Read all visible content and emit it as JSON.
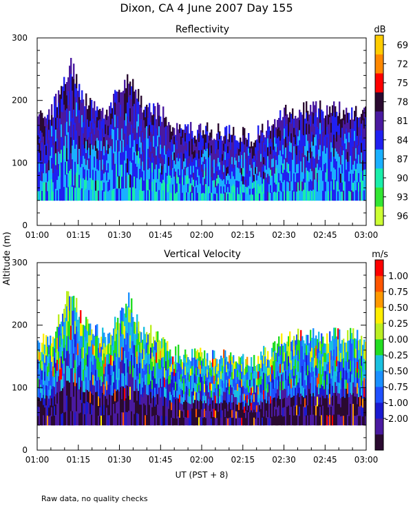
{
  "figure": {
    "title": "Dixon, CA   4 June 2007   Day 155",
    "ylabel": "Altitude (m)",
    "xlabel": "UT  (PST + 8)",
    "note": "Raw data, no quality checks"
  },
  "colors": {
    "reflectivity": [
      "#ccff33",
      "#33e633",
      "#1aeeaa",
      "#1ab0ff",
      "#2020f0",
      "#4a1aa0",
      "#2a0a30",
      "#ff0000",
      "#ff8800",
      "#ffcc00"
    ],
    "velocity": [
      "#2a0a30",
      "#4a1aa0",
      "#1a1ad0",
      "#2050ff",
      "#1a90ff",
      "#1ac0e0",
      "#22dd22",
      "#bbee22",
      "#ffee00",
      "#ff9900",
      "#ff5500",
      "#ff0000"
    ]
  },
  "chart_data": [
    {
      "type": "heatmap",
      "title": "Reflectivity",
      "xlabel": "UT  (PST + 8)",
      "ylabel": "Altitude (m)",
      "xlim": [
        "01:00",
        "03:00"
      ],
      "ylim": [
        0,
        300
      ],
      "x_ticks": [
        "01:00",
        "01:15",
        "01:30",
        "01:45",
        "02:00",
        "02:15",
        "02:30",
        "02:45",
        "03:00"
      ],
      "y_ticks": [
        0,
        100,
        200,
        300
      ],
      "colorbar": {
        "label": "dB",
        "range": [
          67.5,
          97.5
        ],
        "tick_labels": [
          "69",
          "72",
          "75",
          "78",
          "81",
          "84",
          "87",
          "90",
          "93",
          "96"
        ]
      },
      "observations": {
        "data_floor_m": 40,
        "echo_top_profile": [
          {
            "time": "01:00",
            "top_m": 170
          },
          {
            "time": "01:05",
            "top_m": 180
          },
          {
            "time": "01:12",
            "top_m": 260
          },
          {
            "time": "01:15",
            "top_m": 215
          },
          {
            "time": "01:20",
            "top_m": 190
          },
          {
            "time": "01:25",
            "top_m": 180
          },
          {
            "time": "01:33",
            "top_m": 240
          },
          {
            "time": "01:38",
            "top_m": 190
          },
          {
            "time": "01:45",
            "top_m": 180
          },
          {
            "time": "01:50",
            "top_m": 155
          },
          {
            "time": "02:00",
            "top_m": 150
          },
          {
            "time": "02:10",
            "top_m": 150
          },
          {
            "time": "02:18",
            "top_m": 140
          },
          {
            "time": "02:25",
            "top_m": 160
          },
          {
            "time": "02:30",
            "top_m": 185
          },
          {
            "time": "02:40",
            "top_m": 185
          },
          {
            "time": "02:50",
            "top_m": 185
          },
          {
            "time": "03:00",
            "top_m": 175
          }
        ]
      }
    },
    {
      "type": "heatmap",
      "title": "Vertical Velocity",
      "xlabel": "UT  (PST + 8)",
      "ylabel": "Altitude (m)",
      "xlim": [
        "01:00",
        "03:00"
      ],
      "ylim": [
        0,
        300
      ],
      "x_ticks": [
        "01:00",
        "01:15",
        "01:30",
        "01:45",
        "02:00",
        "02:15",
        "02:30",
        "02:45",
        "03:00"
      ],
      "y_ticks": [
        0,
        100,
        200,
        300
      ],
      "colorbar": {
        "label": "m/s",
        "range": [
          -2.0,
          1.0
        ],
        "tick_labels": [
          "1.00",
          "0.75",
          "0.50",
          "0.25",
          "0.00",
          "-0.25",
          "-0.50",
          "-0.75",
          "-1.00",
          "-2.00"
        ]
      },
      "observations": {
        "data_floor_m": 40,
        "echo_top_profile": [
          {
            "time": "01:00",
            "top_m": 170
          },
          {
            "time": "01:05",
            "top_m": 180
          },
          {
            "time": "01:12",
            "top_m": 260
          },
          {
            "time": "01:15",
            "top_m": 215
          },
          {
            "time": "01:20",
            "top_m": 190
          },
          {
            "time": "01:25",
            "top_m": 180
          },
          {
            "time": "01:33",
            "top_m": 240
          },
          {
            "time": "01:38",
            "top_m": 190
          },
          {
            "time": "01:45",
            "top_m": 180
          },
          {
            "time": "01:50",
            "top_m": 155
          },
          {
            "time": "02:00",
            "top_m": 150
          },
          {
            "time": "02:10",
            "top_m": 150
          },
          {
            "time": "02:18",
            "top_m": 140
          },
          {
            "time": "02:25",
            "top_m": 160
          },
          {
            "time": "02:30",
            "top_m": 185
          },
          {
            "time": "02:40",
            "top_m": 185
          },
          {
            "time": "02:50",
            "top_m": 185
          },
          {
            "time": "03:00",
            "top_m": 175
          }
        ]
      }
    }
  ]
}
